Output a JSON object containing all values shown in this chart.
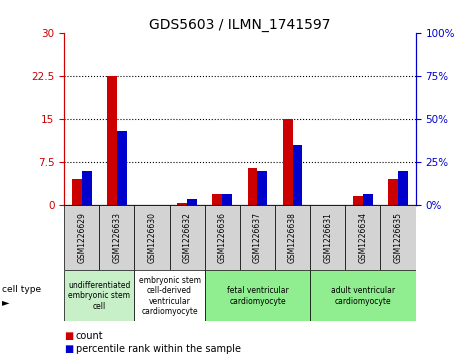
{
  "title": "GDS5603 / ILMN_1741597",
  "samples": [
    "GSM1226629",
    "GSM1226633",
    "GSM1226630",
    "GSM1226632",
    "GSM1226636",
    "GSM1226637",
    "GSM1226638",
    "GSM1226631",
    "GSM1226634",
    "GSM1226635"
  ],
  "count_values": [
    4.5,
    22.5,
    0.0,
    0.3,
    2.0,
    6.5,
    15.0,
    0.0,
    1.5,
    4.5
  ],
  "percentile_values": [
    20.0,
    43.0,
    0.0,
    3.5,
    6.5,
    20.0,
    35.0,
    0.0,
    6.5,
    20.0
  ],
  "ylim_left": [
    0,
    30
  ],
  "ylim_right": [
    0,
    100
  ],
  "yticks_left": [
    0,
    7.5,
    15,
    22.5,
    30
  ],
  "yticks_right": [
    0,
    25,
    50,
    75,
    100
  ],
  "ytick_labels_left": [
    "0",
    "7.5",
    "15",
    "22.5",
    "30"
  ],
  "ytick_labels_right": [
    "0%",
    "25%",
    "50%",
    "75%",
    "100%"
  ],
  "cell_types": [
    {
      "label": "undifferentiated\nembryonic stem\ncell",
      "span": [
        0,
        2
      ],
      "color": "#c8f0c8"
    },
    {
      "label": "embryonic stem\ncell-derived\nventricular\ncardiomyocyte",
      "span": [
        2,
        4
      ],
      "color": "#ffffff"
    },
    {
      "label": "fetal ventricular\ncardiomyocyte",
      "span": [
        4,
        7
      ],
      "color": "#90ee90"
    },
    {
      "label": "adult ventricular\ncardiomyocyte",
      "span": [
        7,
        10
      ],
      "color": "#90ee90"
    }
  ],
  "bar_color_red": "#cc0000",
  "bar_color_blue": "#0000cc",
  "sample_bg_color": "#d3d3d3",
  "title_fontsize": 10,
  "axis_fontsize": 7.5,
  "sample_fontsize": 5.5,
  "celltype_fontsize": 5.5,
  "legend_fontsize": 7
}
